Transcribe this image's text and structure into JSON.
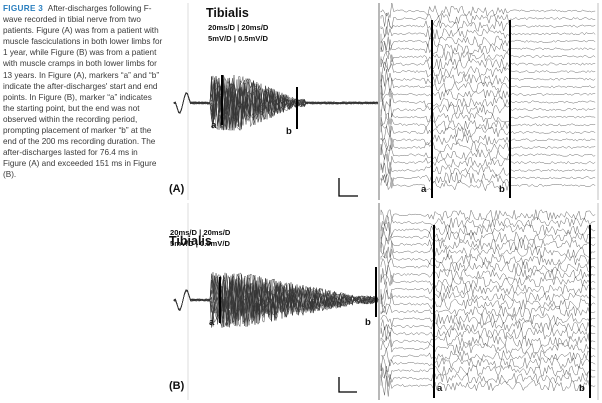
{
  "caption": {
    "label": "FIGURE 3",
    "text": "After-discharges following F-wave recorded in tibial nerve from two patients. Figure (A) was from a patient with muscle fasciculations in both lower limbs for 1 year, while Figure (B) was from a patient with muscle cramps in both lower limbs for 13 years. In Figure (A), markers “a” and “b” indicate the after-discharges' start and end points. In Figure (B), marker “a” indicates the starting point, but the end was not observed within the recording period, prompting placement of marker “b” at the end of the 200 ms recording duration. The after-discharges lasted for 76.4 ms in Figure (A) and exceeded 151 ms in Figure (B)."
  },
  "panels": [
    {
      "label": "(A)",
      "muscle": "Tibialis",
      "scale_line1": "20ms/D | 20ms/D",
      "scale_line2": "5mV/D | 0.5mV/D",
      "marker_a": "a",
      "marker_b": "b",
      "raster_marker_a": "a",
      "raster_marker_b": "b"
    },
    {
      "label": "(B)",
      "muscle": "Tibialis",
      "scale_line1": "20ms/D | 20ms/D",
      "scale_line2": "5mV/D | 0.5mV/D",
      "marker_a": "a",
      "marker_b": "b",
      "raster_marker_a": "a",
      "raster_marker_b": "b"
    }
  ]
}
